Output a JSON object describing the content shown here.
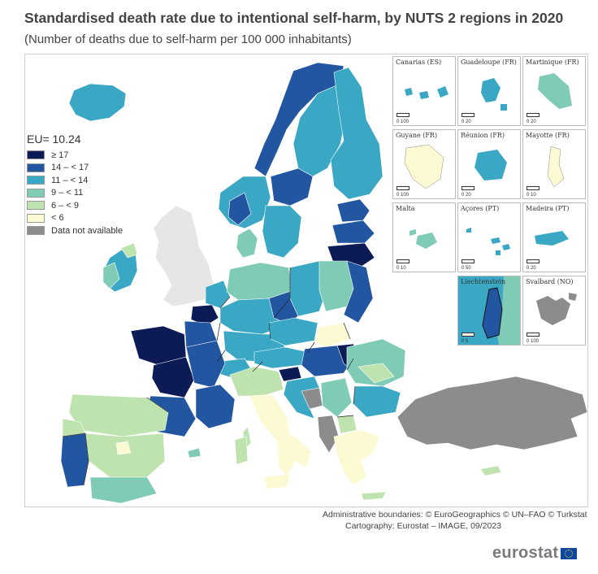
{
  "title": "Standardised death rate due to intentional self-harm, by NUTS 2 regions in 2020",
  "subtitle": "(Number of deaths due to self-harm per 100 000 inhabitants)",
  "legend": {
    "eu_value": "EU= 10.24",
    "classes": [
      {
        "label": "≥ 17",
        "color": "#0c1a55"
      },
      {
        "label": "14 – < 17",
        "color": "#2356a0"
      },
      {
        "label": "11 – < 14",
        "color": "#3aa7c4"
      },
      {
        "label": "9 – < 11",
        "color": "#7fcbb6"
      },
      {
        "label": "6 – < 9",
        "color": "#bfe3ae"
      },
      {
        "label": "< 6",
        "color": "#fbfad3"
      },
      {
        "label": "Data not available",
        "color": "#8c8c8c"
      }
    ]
  },
  "colors": {
    "outside": "#e6e6e6",
    "border": "#ffffff",
    "country_border": "#222222"
  },
  "insets": [
    {
      "label": "Canarias (ES)",
      "scale": "0   100",
      "class": "11 – < 14"
    },
    {
      "label": "Guadeloupe (FR)",
      "scale": "0    20",
      "class": "11 – < 14"
    },
    {
      "label": "Martinique (FR)",
      "scale": "0    20",
      "class": "9 – < 11"
    },
    {
      "label": "Guyane (FR)",
      "scale": "0   100",
      "class": "< 6"
    },
    {
      "label": "Réunion (FR)",
      "scale": "0    20",
      "class": "11 – < 14"
    },
    {
      "label": "Mayotte (FR)",
      "scale": "0    10",
      "class": "< 6"
    },
    {
      "label": "Malta",
      "scale": "0    10",
      "class": "9 – < 11"
    },
    {
      "label": "Açores (PT)",
      "scale": "0    50",
      "class": "11 – < 14"
    },
    {
      "label": "Madeira (PT)",
      "scale": "0    20",
      "class": "11 – < 14"
    },
    {
      "label": "Liechtenstein",
      "scale": "0    5",
      "class": "14 – < 17"
    },
    {
      "label": "Svalbard (NO)",
      "scale": "0   100",
      "class": "Data not available"
    }
  ],
  "credits": {
    "line1": "Administrative boundaries: © EuroGeographics © UN–FAO © Turkstat",
    "line2": "Cartography: Eurostat – IMAGE, 09/2023"
  },
  "logo": "eurostat"
}
